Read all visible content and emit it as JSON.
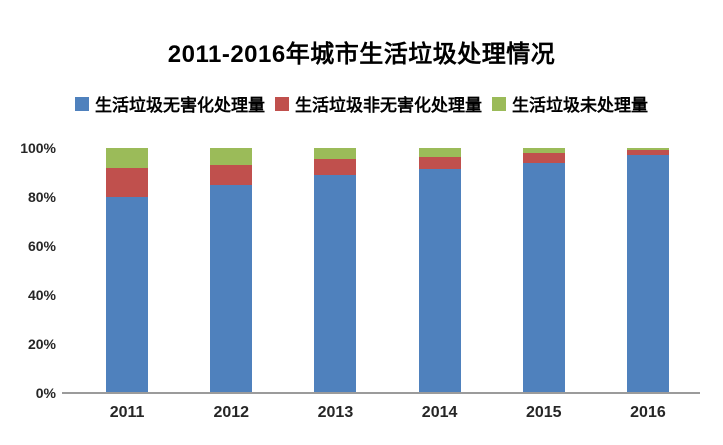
{
  "title": "2011-2016年城市生活垃圾处理情况",
  "colors": {
    "series_blue": "#4F81BD",
    "series_red": "#C0504D",
    "series_green": "#9BBB59",
    "axis_line": "#9B9B9B",
    "text": "#000000",
    "background": "#FFFFFF"
  },
  "chart_data": {
    "type": "bar",
    "stacked": true,
    "units": "percent",
    "title": "2011-2016年城市生活垃圾处理情况",
    "categories": [
      "2011",
      "2012",
      "2013",
      "2014",
      "2015",
      "2016"
    ],
    "series": [
      {
        "name": "生活垃圾无害化处理量",
        "color": "#4F81BD",
        "values": [
          80,
          85,
          89,
          91.5,
          94,
          97
        ]
      },
      {
        "name": "生活垃圾非无害化处理量",
        "color": "#C0504D",
        "values": [
          12,
          8,
          6.5,
          5,
          4,
          2
        ]
      },
      {
        "name": "生活垃圾未处理量",
        "color": "#9BBB59",
        "values": [
          8,
          7,
          4.5,
          3.5,
          2,
          1
        ]
      }
    ],
    "xlabel": "",
    "ylabel": "",
    "ylim": [
      0,
      100
    ],
    "yticks": [
      {
        "value": 0,
        "label": "0%"
      },
      {
        "value": 20,
        "label": "20%"
      },
      {
        "value": 40,
        "label": "40%"
      },
      {
        "value": 60,
        "label": "60%"
      },
      {
        "value": 80,
        "label": "80%"
      },
      {
        "value": 100,
        "label": "100%"
      }
    ],
    "grid": false,
    "legend_position": "top"
  }
}
